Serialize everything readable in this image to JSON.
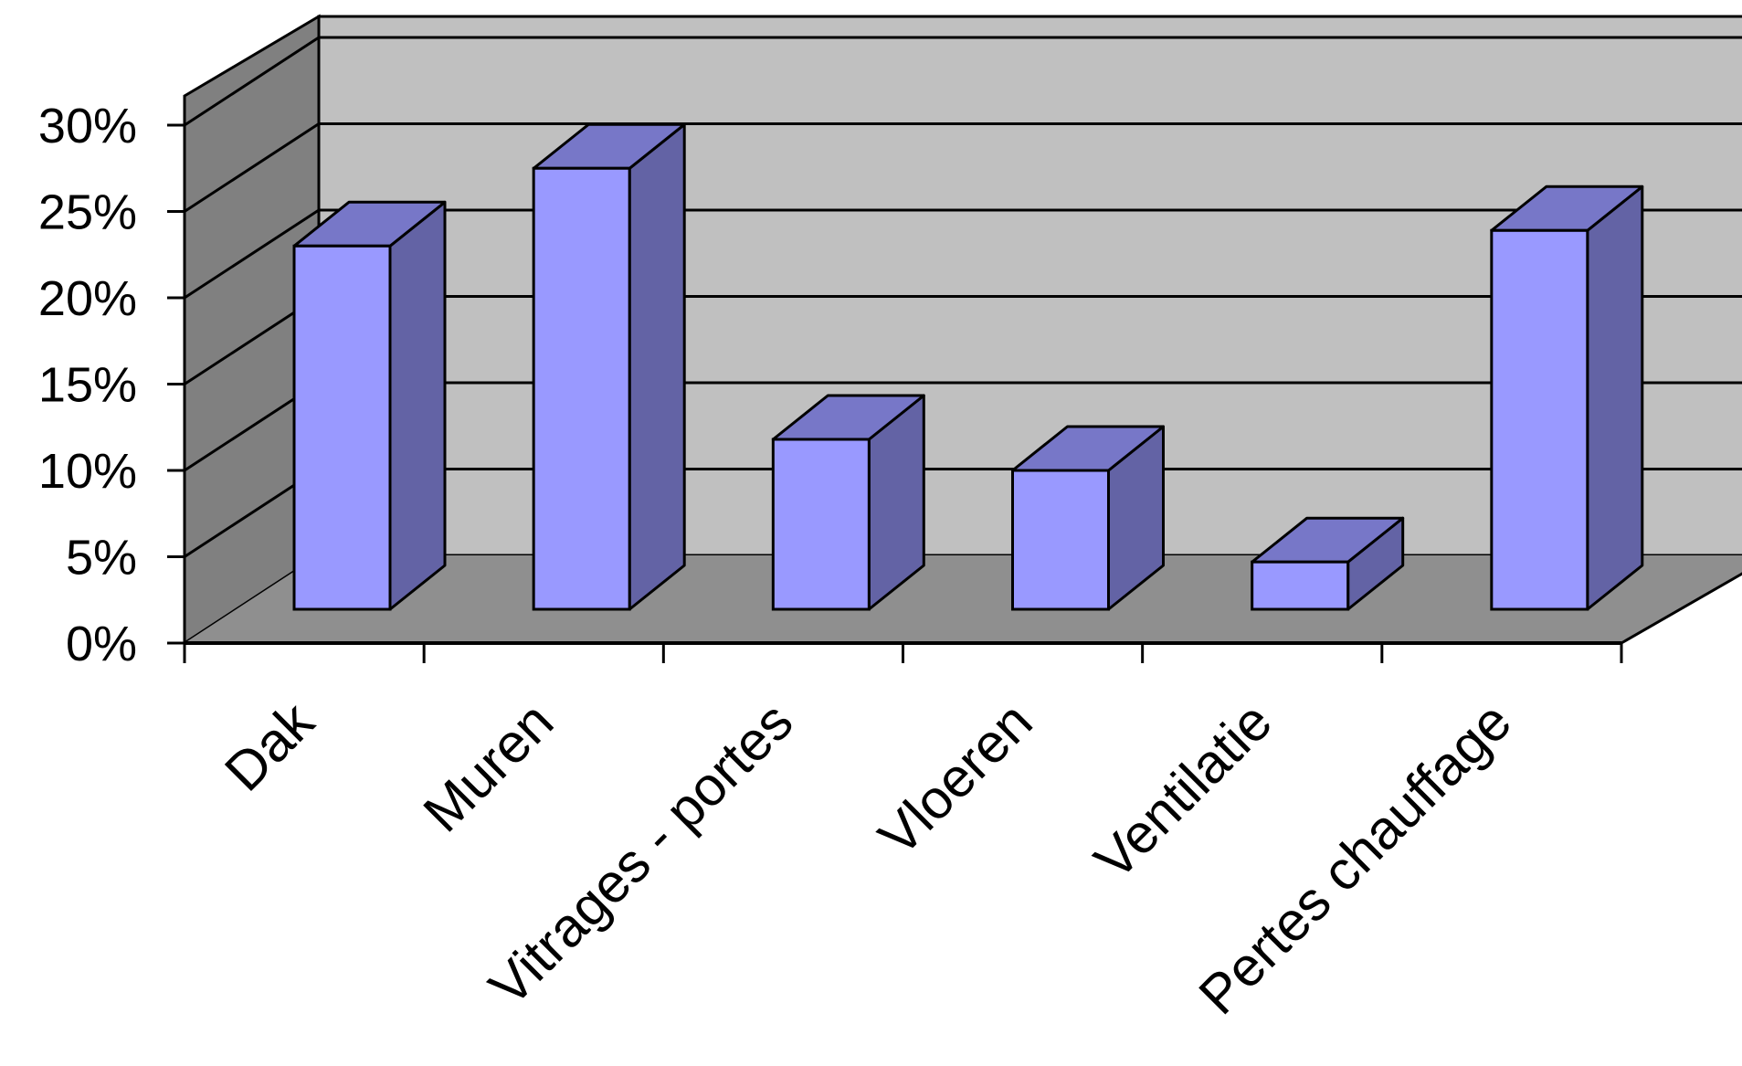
{
  "chart_data": {
    "type": "bar",
    "title": "",
    "xlabel": "",
    "ylabel": "",
    "categories": [
      "Dak",
      "Muren",
      "Vitrages - portes",
      "Vloeren",
      "Ventilatie",
      "Pertes chauffage"
    ],
    "values": [
      23,
      27.5,
      11.8,
      10,
      4.7,
      23.9
    ],
    "ylim": [
      0,
      30
    ],
    "yticks": [
      "0%",
      "5%",
      "10%",
      "15%",
      "20%",
      "25%",
      "30%"
    ],
    "grid": true,
    "legend": "none",
    "style": "3d-column"
  },
  "colors": {
    "bar_front": "#9999ff",
    "bar_side": "#6363a5",
    "bar_top": "#7777c8",
    "back_wall": "#c0c0c0",
    "side_wall": "#808080",
    "floor": "#8f8f8f",
    "line": "#000000"
  }
}
